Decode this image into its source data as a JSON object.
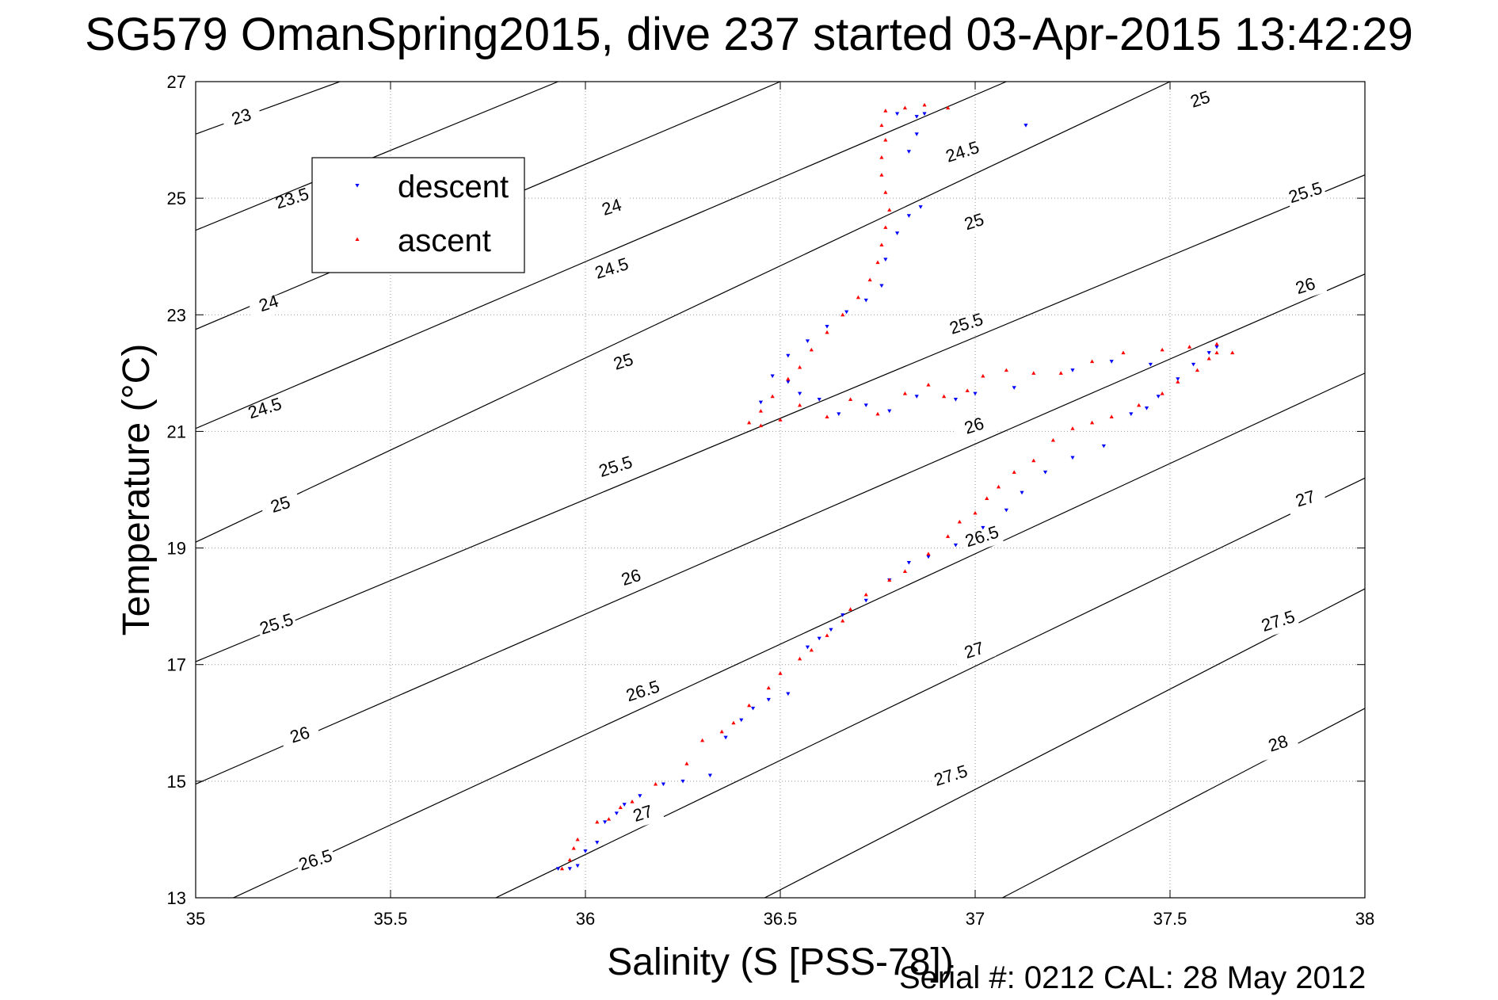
{
  "title": "SG579 OmanSpring2015, dive 237 started 03-Apr-2015 13:42:29",
  "footer": "Serial #: 0212  CAL: 28 May 2012",
  "chart_data": {
    "type": "scatter",
    "title": "SG579 OmanSpring2015, dive 237 started 03-Apr-2015 13:42:29",
    "xlabel": "Salinity (S [PSS-78])",
    "ylabel": "Temperature (°C)",
    "xlim": [
      35,
      38
    ],
    "ylim": [
      13,
      27
    ],
    "xticks": [
      35,
      35.5,
      36,
      36.5,
      37,
      37.5,
      38
    ],
    "xtick_labels": [
      "35",
      "35.5",
      "36",
      "36.5",
      "37",
      "37.5",
      "38"
    ],
    "yticks": [
      13,
      15,
      17,
      19,
      21,
      23,
      25,
      27
    ],
    "ytick_labels": [
      "13",
      "15",
      "17",
      "19",
      "21",
      "23",
      "25",
      "27"
    ],
    "grid": true,
    "legend": "top-left",
    "density_contours": {
      "color": "#000000",
      "levels": [
        {
          "label": "23",
          "t_at_35": 26.1,
          "s_at_27": 35.37
        },
        {
          "label": "23.5",
          "t_at_35": 24.45,
          "s_at_27": 35.93
        },
        {
          "label": "24",
          "t_at_35": 22.75,
          "s_at_27": 36.5
        },
        {
          "label": "24.5",
          "t_at_35": 21.05,
          "s_at_27": 37.08
        },
        {
          "label": "25",
          "t_at_35": 19.1,
          "s_at_27": 37.5
        },
        {
          "label": "25.5",
          "t_at_35": 17.05,
          "t_at_38": 25.4
        },
        {
          "label": "26",
          "t_at_35": 14.95,
          "t_at_38": 23.7
        },
        {
          "label": "26.5",
          "t_at_35": 12.7,
          "t_at_38": 22.0
        },
        {
          "label": "27",
          "s_at_13": 35.77,
          "t_at_38": 20.2
        },
        {
          "label": "27.5",
          "s_at_13": 36.46,
          "t_at_38": 18.3
        },
        {
          "label": "28",
          "s_at_13": 37.07,
          "t_at_38": 16.25
        }
      ]
    },
    "series": [
      {
        "name": "descent",
        "marker": "triangle-down",
        "color": "#0000ff",
        "points": [
          [
            35.93,
            13.5
          ],
          [
            35.96,
            13.5
          ],
          [
            35.98,
            13.55
          ],
          [
            36.0,
            13.8
          ],
          [
            36.03,
            13.95
          ],
          [
            36.05,
            14.3
          ],
          [
            36.08,
            14.45
          ],
          [
            36.1,
            14.6
          ],
          [
            36.14,
            14.75
          ],
          [
            36.2,
            14.95
          ],
          [
            36.25,
            15.0
          ],
          [
            36.32,
            15.1
          ],
          [
            36.36,
            15.75
          ],
          [
            36.4,
            16.05
          ],
          [
            36.43,
            16.25
          ],
          [
            36.47,
            16.4
          ],
          [
            36.52,
            16.5
          ],
          [
            36.57,
            17.3
          ],
          [
            36.6,
            17.45
          ],
          [
            36.63,
            17.6
          ],
          [
            36.66,
            17.85
          ],
          [
            36.72,
            18.1
          ],
          [
            36.78,
            18.45
          ],
          [
            36.83,
            18.75
          ],
          [
            36.88,
            18.85
          ],
          [
            36.95,
            19.05
          ],
          [
            37.02,
            19.35
          ],
          [
            37.08,
            19.65
          ],
          [
            37.12,
            19.95
          ],
          [
            37.18,
            20.3
          ],
          [
            37.25,
            20.55
          ],
          [
            37.33,
            20.75
          ],
          [
            37.4,
            21.3
          ],
          [
            37.44,
            21.4
          ],
          [
            37.47,
            21.6
          ],
          [
            37.52,
            21.9
          ],
          [
            37.56,
            22.15
          ],
          [
            37.6,
            22.35
          ],
          [
            37.62,
            22.45
          ],
          [
            37.45,
            22.15
          ],
          [
            37.35,
            22.2
          ],
          [
            37.25,
            22.05
          ],
          [
            37.1,
            21.75
          ],
          [
            37.0,
            21.65
          ],
          [
            36.95,
            21.55
          ],
          [
            36.85,
            21.6
          ],
          [
            36.78,
            21.35
          ],
          [
            36.72,
            21.45
          ],
          [
            36.65,
            21.3
          ],
          [
            36.6,
            21.55
          ],
          [
            36.55,
            21.65
          ],
          [
            36.52,
            21.85
          ],
          [
            36.48,
            21.95
          ],
          [
            36.45,
            21.5
          ],
          [
            36.52,
            22.3
          ],
          [
            36.57,
            22.55
          ],
          [
            36.62,
            22.8
          ],
          [
            36.67,
            23.05
          ],
          [
            36.72,
            23.25
          ],
          [
            36.76,
            23.5
          ],
          [
            36.77,
            23.95
          ],
          [
            36.8,
            24.4
          ],
          [
            36.83,
            24.7
          ],
          [
            36.86,
            24.85
          ],
          [
            36.83,
            25.8
          ],
          [
            36.85,
            26.1
          ],
          [
            36.85,
            26.4
          ],
          [
            36.87,
            26.45
          ],
          [
            36.8,
            26.45
          ],
          [
            37.13,
            26.25
          ]
        ]
      },
      {
        "name": "ascent",
        "marker": "triangle-up",
        "color": "#ff0000",
        "points": [
          [
            35.94,
            13.5
          ],
          [
            35.96,
            13.65
          ],
          [
            35.97,
            13.85
          ],
          [
            35.98,
            14.0
          ],
          [
            36.03,
            14.3
          ],
          [
            36.06,
            14.35
          ],
          [
            36.09,
            14.55
          ],
          [
            36.12,
            14.65
          ],
          [
            36.18,
            14.95
          ],
          [
            36.26,
            15.3
          ],
          [
            36.3,
            15.7
          ],
          [
            36.35,
            15.85
          ],
          [
            36.38,
            16.0
          ],
          [
            36.42,
            16.3
          ],
          [
            36.47,
            16.6
          ],
          [
            36.5,
            16.85
          ],
          [
            36.55,
            17.1
          ],
          [
            36.58,
            17.25
          ],
          [
            36.62,
            17.5
          ],
          [
            36.66,
            17.75
          ],
          [
            36.68,
            17.95
          ],
          [
            36.72,
            18.2
          ],
          [
            36.78,
            18.45
          ],
          [
            36.82,
            18.6
          ],
          [
            36.88,
            18.9
          ],
          [
            36.93,
            19.2
          ],
          [
            36.96,
            19.45
          ],
          [
            37.0,
            19.6
          ],
          [
            37.03,
            19.85
          ],
          [
            37.06,
            20.05
          ],
          [
            37.1,
            20.3
          ],
          [
            37.15,
            20.5
          ],
          [
            37.2,
            20.85
          ],
          [
            37.25,
            21.05
          ],
          [
            37.3,
            21.15
          ],
          [
            37.35,
            21.25
          ],
          [
            37.42,
            21.45
          ],
          [
            37.48,
            21.65
          ],
          [
            37.52,
            21.85
          ],
          [
            37.57,
            22.05
          ],
          [
            37.6,
            22.25
          ],
          [
            37.62,
            22.35
          ],
          [
            37.66,
            22.35
          ],
          [
            37.62,
            22.5
          ],
          [
            37.55,
            22.45
          ],
          [
            37.48,
            22.4
          ],
          [
            37.38,
            22.35
          ],
          [
            37.3,
            22.2
          ],
          [
            37.22,
            22.0
          ],
          [
            37.15,
            22.0
          ],
          [
            37.08,
            22.05
          ],
          [
            37.02,
            21.95
          ],
          [
            36.98,
            21.7
          ],
          [
            36.92,
            21.6
          ],
          [
            36.88,
            21.8
          ],
          [
            36.82,
            21.65
          ],
          [
            36.75,
            21.3
          ],
          [
            36.68,
            21.55
          ],
          [
            36.62,
            21.25
          ],
          [
            36.55,
            21.45
          ],
          [
            36.5,
            21.2
          ],
          [
            36.45,
            21.1
          ],
          [
            36.42,
            21.15
          ],
          [
            36.45,
            21.35
          ],
          [
            36.48,
            21.6
          ],
          [
            36.52,
            21.9
          ],
          [
            36.55,
            22.1
          ],
          [
            36.58,
            22.4
          ],
          [
            36.62,
            22.7
          ],
          [
            36.66,
            23.0
          ],
          [
            36.7,
            23.3
          ],
          [
            36.73,
            23.6
          ],
          [
            36.75,
            23.9
          ],
          [
            36.76,
            24.2
          ],
          [
            36.77,
            24.5
          ],
          [
            36.78,
            24.8
          ],
          [
            36.77,
            25.1
          ],
          [
            36.76,
            25.4
          ],
          [
            36.76,
            25.7
          ],
          [
            36.77,
            26.0
          ],
          [
            36.76,
            26.25
          ],
          [
            36.77,
            26.5
          ],
          [
            36.82,
            26.55
          ],
          [
            36.87,
            26.6
          ],
          [
            36.93,
            26.55
          ]
        ]
      }
    ]
  }
}
